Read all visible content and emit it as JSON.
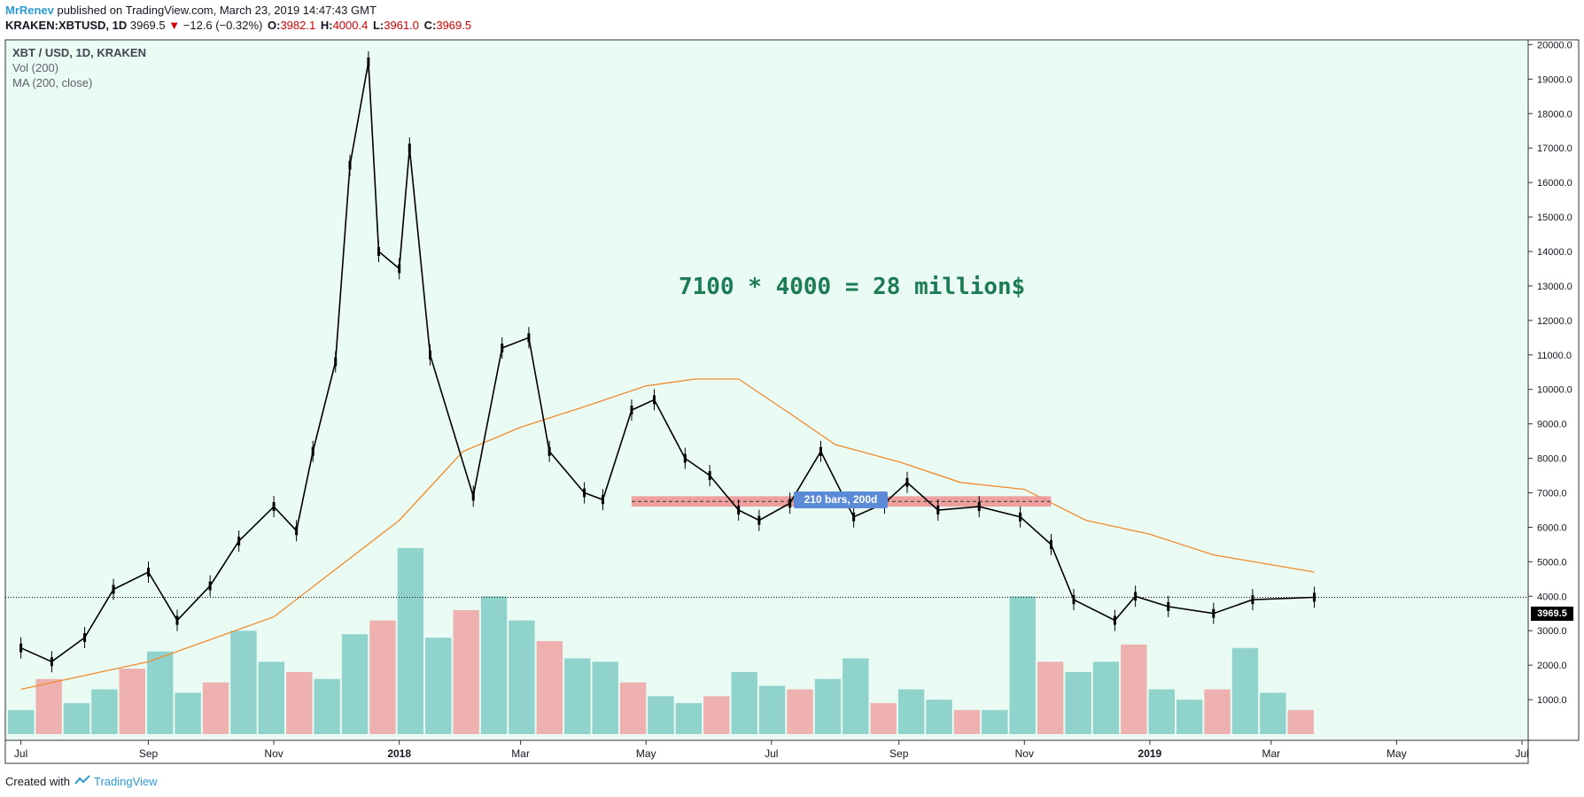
{
  "header": {
    "author": "MrRenev",
    "published_text": " published on TradingView.com, March 23, 2019 14:47:43 GMT"
  },
  "symbol_bar": {
    "symbol": "KRAKEN:XBTUSD, 1D",
    "last": "3969.5",
    "arrow": "▼",
    "change": "−12.6 (−0.32%)",
    "o_label": "O:",
    "o": "3982.1",
    "h_label": "H:",
    "h": "4000.4",
    "l_label": "L:",
    "l": "3961.0",
    "c_label": "C:",
    "c": "3969.5"
  },
  "legend": {
    "main": "XBT / USD, 1D, KRAKEN",
    "volume": "Vol (200)",
    "ma": "MA (200, close)"
  },
  "annotation": "7100 * 4000 = 28 million$",
  "range_label": "210 bars, 200d",
  "price_label": "3969.5",
  "footer": {
    "prefix": "Created with",
    "brand": "TradingView"
  },
  "colors": {
    "background": "#e9fbf3",
    "candle": "#000000",
    "ma_line": "#f08a2c",
    "vol_up": "#7fcbc4",
    "vol_down": "#eea3a3",
    "range_box": "#ee8f8f",
    "annotation": "#1e7b58",
    "label_bg": "#5b8ad6"
  },
  "chart_data": {
    "type": "line",
    "title": "XBT / USD, 1D, KRAKEN",
    "xlabel": "",
    "ylabel": "",
    "x_ticks": [
      "Jul",
      "Sep",
      "Nov",
      "2018",
      "Mar",
      "May",
      "Jul",
      "Sep",
      "Nov",
      "2019",
      "Mar",
      "May",
      "Jul"
    ],
    "y_ticks": [
      "20000.0",
      "19000.0",
      "18000.0",
      "17000.0",
      "16000.0",
      "15000.0",
      "14000.0",
      "13000.0",
      "12000.0",
      "11000.0",
      "10000.0",
      "9000.0",
      "8000.0",
      "7000.0",
      "6000.0",
      "5000.0",
      "4000.0",
      "3000.0",
      "2000.0",
      "1000.0"
    ],
    "ylim": [
      0,
      20800
    ],
    "series": [
      {
        "name": "XBT / USD",
        "x": [
          "2017-07-01",
          "2017-07-16",
          "2017-08-01",
          "2017-08-15",
          "2017-09-01",
          "2017-09-15",
          "2017-10-01",
          "2017-10-15",
          "2017-11-01",
          "2017-11-12",
          "2017-11-20",
          "2017-12-01",
          "2017-12-08",
          "2017-12-17",
          "2017-12-22",
          "2018-01-01",
          "2018-01-06",
          "2018-01-16",
          "2018-02-06",
          "2018-02-20",
          "2018-03-05",
          "2018-03-15",
          "2018-04-01",
          "2018-04-10",
          "2018-04-24",
          "2018-05-05",
          "2018-05-20",
          "2018-06-01",
          "2018-06-15",
          "2018-06-25",
          "2018-07-10",
          "2018-07-25",
          "2018-08-10",
          "2018-08-25",
          "2018-09-05",
          "2018-09-20",
          "2018-10-10",
          "2018-10-30",
          "2018-11-14",
          "2018-11-25",
          "2018-12-15",
          "2018-12-25",
          "2019-01-10",
          "2019-02-01",
          "2019-02-20",
          "2019-03-22"
        ],
        "y": [
          2500,
          2100,
          2800,
          4200,
          4700,
          3300,
          4300,
          5600,
          6600,
          5900,
          8200,
          10800,
          16500,
          19500,
          14000,
          13500,
          17000,
          11000,
          6900,
          11200,
          11500,
          8200,
          7000,
          6800,
          9400,
          9700,
          8000,
          7500,
          6500,
          6200,
          6700,
          8200,
          6300,
          6700,
          7300,
          6500,
          6600,
          6300,
          5500,
          3900,
          3300,
          4000,
          3700,
          3500,
          3900,
          3969.5
        ]
      },
      {
        "name": "MA (200, close)",
        "x": [
          "2017-07-01",
          "2017-09-01",
          "2017-11-01",
          "2018-01-01",
          "2018-02-01",
          "2018-03-01",
          "2018-04-01",
          "2018-05-01",
          "2018-05-25",
          "2018-06-15",
          "2018-07-10",
          "2018-08-01",
          "2018-09-01",
          "2018-10-01",
          "2018-11-01",
          "2018-12-01",
          "2019-01-01",
          "2019-02-01",
          "2019-03-22"
        ],
        "y": [
          1300,
          2100,
          3400,
          6200,
          8200,
          8900,
          9500,
          10100,
          10300,
          10300,
          9300,
          8400,
          7900,
          7300,
          7100,
          6200,
          5800,
          5200,
          4700
        ]
      },
      {
        "name": "Vol (200)",
        "values_note_shown_on_axis": "1000.0–4000.0",
        "y": [
          700,
          1600,
          900,
          1300,
          1900,
          2400,
          1200,
          1500,
          3000,
          2100,
          1800,
          1600,
          2900,
          3300,
          5400,
          2800,
          3600,
          4000,
          3300,
          2700,
          2200,
          2100,
          1500,
          1100,
          900,
          1100,
          1800,
          1400,
          1300,
          1600,
          2200,
          900,
          1300,
          1000,
          700,
          700,
          4000,
          2100,
          1800,
          2100,
          2600,
          1300,
          1000,
          1300,
          2500,
          1200,
          700
        ]
      }
    ],
    "range": {
      "label": "210 bars, 200d",
      "from": "2018-04-24",
      "to": "2018-11-14",
      "price_low": 6600,
      "price_high": 6900
    },
    "current_price": 3969.5,
    "grid": false,
    "legend": "top-left"
  }
}
